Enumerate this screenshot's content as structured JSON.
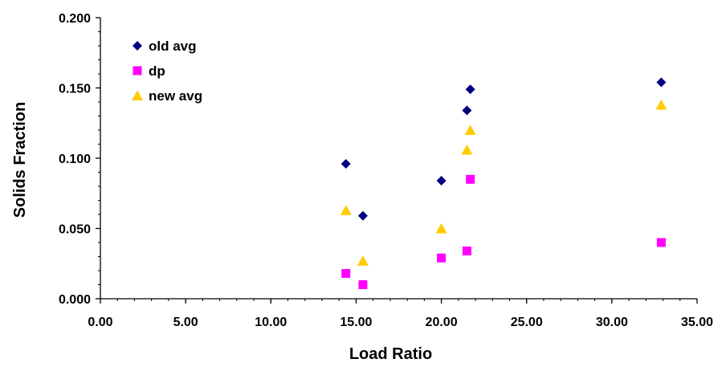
{
  "chart_data": {
    "type": "scatter",
    "xlabel": "Load Ratio",
    "ylabel": "Solids Fraction",
    "xlim": [
      0,
      35
    ],
    "ylim": [
      0,
      0.2
    ],
    "x_ticks": [
      "0.00",
      "5.00",
      "10.00",
      "15.00",
      "20.00",
      "25.00",
      "30.00",
      "35.00"
    ],
    "y_ticks": [
      "0.000",
      "0.050",
      "0.100",
      "0.150",
      "0.200"
    ],
    "grid": false,
    "legend_position": "top-left",
    "series": [
      {
        "name": "old avg",
        "marker": "diamond",
        "color": "#000080",
        "points": [
          {
            "x": 14.4,
            "y": 0.096
          },
          {
            "x": 15.4,
            "y": 0.059
          },
          {
            "x": 20.0,
            "y": 0.084
          },
          {
            "x": 21.5,
            "y": 0.134
          },
          {
            "x": 21.7,
            "y": 0.149
          },
          {
            "x": 32.9,
            "y": 0.154
          }
        ]
      },
      {
        "name": "dp",
        "marker": "square",
        "color": "#ff00ff",
        "points": [
          {
            "x": 14.4,
            "y": 0.018
          },
          {
            "x": 15.4,
            "y": 0.01
          },
          {
            "x": 20.0,
            "y": 0.029
          },
          {
            "x": 21.5,
            "y": 0.034
          },
          {
            "x": 21.7,
            "y": 0.085
          },
          {
            "x": 32.9,
            "y": 0.04
          }
        ]
      },
      {
        "name": "new avg",
        "marker": "triangle",
        "color": "#ffcc00",
        "points": [
          {
            "x": 14.4,
            "y": 0.063
          },
          {
            "x": 15.4,
            "y": 0.027
          },
          {
            "x": 20.0,
            "y": 0.05
          },
          {
            "x": 21.5,
            "y": 0.106
          },
          {
            "x": 21.7,
            "y": 0.12
          },
          {
            "x": 32.9,
            "y": 0.138
          }
        ]
      }
    ]
  }
}
